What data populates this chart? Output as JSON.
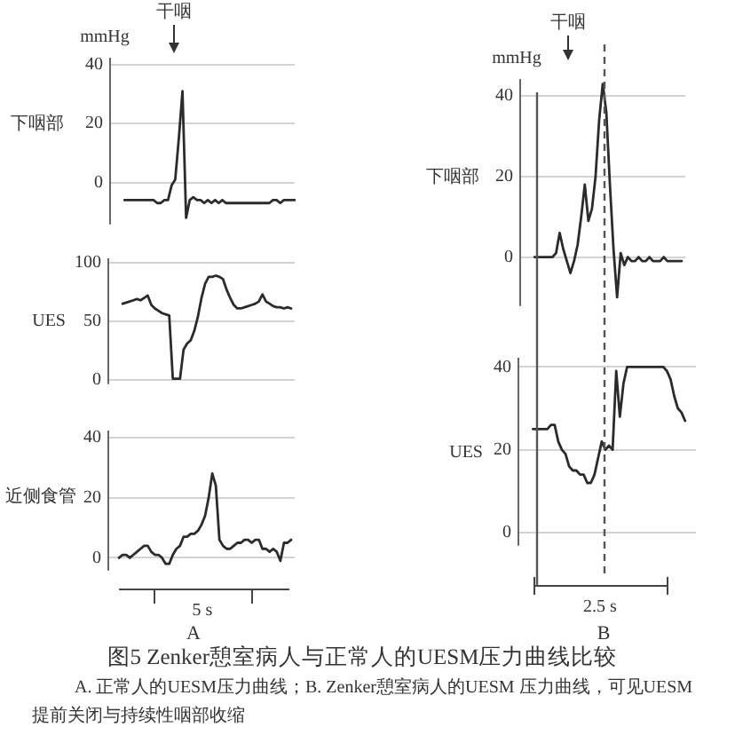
{
  "chart_data": [
    {
      "type": "line",
      "ylabel": "下咽部",
      "annotations": [
        "mmHg",
        "干咽"
      ],
      "categories": [
        null,
        null,
        null,
        null,
        null,
        null,
        null,
        null,
        null,
        null,
        null,
        null,
        null,
        null,
        null,
        null,
        null,
        null,
        null,
        null,
        null,
        null,
        null,
        null,
        null,
        null,
        null,
        null,
        null,
        null,
        null,
        null,
        null,
        null,
        null,
        null,
        null,
        null,
        null,
        null,
        null,
        null,
        null,
        null,
        null,
        null,
        null,
        null,
        null,
        null,
        null,
        null
      ],
      "values": [
        null,
        null,
        null,
        null,
        -6,
        -6,
        -6,
        -6,
        -6,
        -6,
        -6,
        -6,
        -6,
        -7,
        -7,
        -6,
        -6,
        -1,
        1,
        15,
        31,
        -12,
        -6,
        -5,
        -6,
        -6,
        -7,
        -6,
        -7,
        -6,
        -7,
        -6,
        -7,
        -7,
        -7,
        -7,
        -7,
        -7,
        -7,
        -7,
        -7,
        -7,
        -7,
        -7,
        -7,
        -6,
        -6,
        -7,
        -6,
        -6,
        -6,
        -6
      ],
      "color": "#2b2b2b",
      "ylim": [
        -14,
        42
      ],
      "yticks": [
        0,
        20,
        40
      ],
      "grid": "y",
      "tick_labels": "y"
    },
    {
      "type": "line",
      "ylabel": "UES",
      "categories": [
        null,
        null,
        null,
        null,
        null,
        null,
        null,
        null,
        null,
        null,
        null,
        null,
        null,
        null,
        null,
        null,
        null,
        null,
        null,
        null,
        null,
        null,
        null,
        null,
        null,
        null,
        null,
        null,
        null,
        null,
        null,
        null,
        null,
        null,
        null,
        null,
        null,
        null,
        null,
        null,
        null,
        null,
        null,
        null,
        null,
        null,
        null,
        null,
        null,
        null,
        null,
        null,
        null
      ],
      "values": [
        null,
        null,
        null,
        null,
        65,
        66,
        67,
        68,
        69,
        68,
        70,
        72,
        64,
        61,
        59,
        57,
        56,
        55,
        1,
        1,
        1,
        26,
        31,
        34,
        42,
        54,
        70,
        82,
        88,
        88,
        89,
        88,
        86,
        77,
        70,
        64,
        61,
        61,
        62,
        63,
        64,
        65,
        67,
        73,
        67,
        65,
        63,
        62,
        62,
        61,
        62,
        61,
        null
      ],
      "color": "#2b2b2b",
      "ylim": [
        -3,
        103
      ],
      "yticks": [
        0,
        50,
        100
      ],
      "grid": "y",
      "tick_labels": "y"
    },
    {
      "type": "line",
      "ylabel": "近侧食管",
      "annotations": [
        "5 s",
        "A"
      ],
      "categories": [
        null,
        null,
        null,
        null,
        null,
        null,
        null,
        null,
        null,
        null,
        null,
        null,
        null,
        null,
        null,
        null,
        null,
        null,
        null,
        null,
        null,
        null,
        null,
        null,
        null,
        null,
        null,
        null,
        null,
        null,
        null,
        null,
        null,
        null,
        null,
        null,
        null,
        null,
        null,
        null,
        null,
        null,
        null,
        null,
        null,
        null,
        null,
        null,
        null,
        null,
        null,
        null,
        null
      ],
      "values": [
        null,
        null,
        null,
        0,
        1,
        1,
        0,
        1,
        2,
        3,
        4,
        4,
        2,
        1,
        1,
        0,
        -2,
        -2,
        1,
        3,
        4,
        7,
        7,
        8,
        8,
        9,
        11,
        14,
        20,
        28,
        24,
        6,
        4,
        3,
        3,
        4,
        5,
        5,
        6,
        6,
        5,
        6,
        6,
        3,
        3,
        2,
        3,
        2,
        -1,
        5,
        5,
        6,
        null
      ],
      "color": "#2b2b2b",
      "ylim": [
        -4,
        42
      ],
      "yticks": [
        0,
        20,
        40
      ],
      "grid": "y",
      "tick_labels": "y"
    },
    {
      "type": "line",
      "ylabel": "下咽部",
      "annotations": [
        "mmHg",
        "干咽"
      ],
      "categories": [
        null,
        null,
        null,
        null,
        null,
        null,
        null,
        null,
        null,
        null,
        null,
        null,
        null,
        null,
        null,
        null,
        null,
        null,
        null,
        null,
        null,
        null,
        null,
        null,
        null,
        null,
        null,
        null,
        null,
        null,
        null,
        null,
        null,
        null,
        null,
        null,
        null,
        null,
        null,
        null,
        null,
        null,
        null,
        null,
        null,
        null,
        null
      ],
      "values": [
        null,
        null,
        null,
        null,
        0,
        0,
        0,
        0,
        0,
        0,
        1,
        6,
        2,
        -1,
        -4,
        -1,
        3,
        10,
        18,
        9,
        12,
        20,
        34,
        43,
        36,
        18,
        2,
        -10,
        1,
        -2,
        0,
        -1,
        -1,
        0,
        -1,
        -1,
        0,
        -1,
        -1,
        -1,
        0,
        -1,
        -1,
        -1,
        -1,
        -1,
        null
      ],
      "color": "#2b2b2b",
      "ylim": [
        -12,
        44
      ],
      "yticks": [
        0,
        20,
        40
      ],
      "grid": "y",
      "tick_labels": "y"
    },
    {
      "type": "line",
      "ylabel": "UES",
      "annotations": [
        "2.5 s",
        "B"
      ],
      "categories": [
        null,
        null,
        null,
        null,
        null,
        null,
        null,
        null,
        null,
        null,
        null,
        null,
        null,
        null,
        null,
        null,
        null,
        null,
        null,
        null,
        null,
        null,
        null,
        null,
        null,
        null,
        null,
        null,
        null,
        null,
        null,
        null,
        null,
        null,
        null,
        null,
        null,
        null,
        null,
        null,
        null,
        null,
        null,
        null,
        null,
        null,
        null,
        null,
        null,
        null
      ],
      "values": [
        null,
        null,
        null,
        null,
        25,
        25,
        25,
        25,
        25,
        26,
        26,
        22,
        20,
        19,
        16,
        15,
        15,
        14,
        14,
        12,
        12,
        14,
        18,
        22,
        20,
        21,
        20,
        39,
        28,
        36,
        40,
        40,
        40,
        40,
        40,
        40,
        40,
        40,
        40,
        40,
        40,
        39,
        37,
        33,
        30,
        29,
        27,
        null,
        null,
        null
      ],
      "color": "#2b2b2b",
      "ylim": [
        -3,
        42
      ],
      "yticks": [
        0,
        20,
        40
      ],
      "grid": "y",
      "tick_labels": "y"
    },
    {
      "type": "other",
      "title": "图5 Zenker憩室病人与正常人的UESM压力曲线比较",
      "annotations": [
        "A. 正常人的UESM压力曲线；B. Zenker憩室病人的UESM 压力曲线，可见UESM提前关闭与持续性咽部收缩"
      ]
    }
  ]
}
